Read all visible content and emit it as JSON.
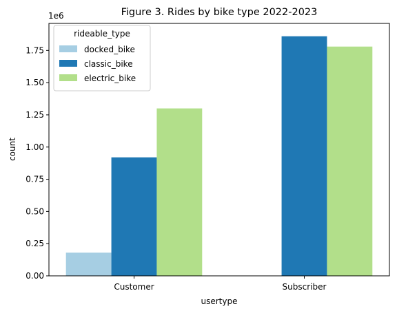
{
  "chart_data": {
    "type": "bar",
    "title": "Figure 3. Rides by bike type 2022-2023",
    "xlabel": "usertype",
    "ylabel": "count",
    "y_scale_label": "1e6",
    "categories": [
      "Customer",
      "Subscriber"
    ],
    "series": [
      {
        "name": "docked_bike",
        "color": "#a6cee3",
        "values": [
          0.18,
          0
        ]
      },
      {
        "name": "classic_bike",
        "color": "#1f78b4",
        "values": [
          0.92,
          1.86
        ]
      },
      {
        "name": "electric_bike",
        "color": "#b2df8a",
        "values": [
          1.3,
          1.78
        ]
      }
    ],
    "ylim": [
      0,
      1.96
    ],
    "yticks": [
      "0.00",
      "0.25",
      "0.50",
      "0.75",
      "1.00",
      "1.25",
      "1.50",
      "1.75"
    ],
    "ytick_values": [
      0,
      0.25,
      0.5,
      0.75,
      1.0,
      1.25,
      1.5,
      1.75
    ],
    "legend": {
      "title": "rideable_type",
      "placement": "upper-left"
    },
    "grid": false
  }
}
